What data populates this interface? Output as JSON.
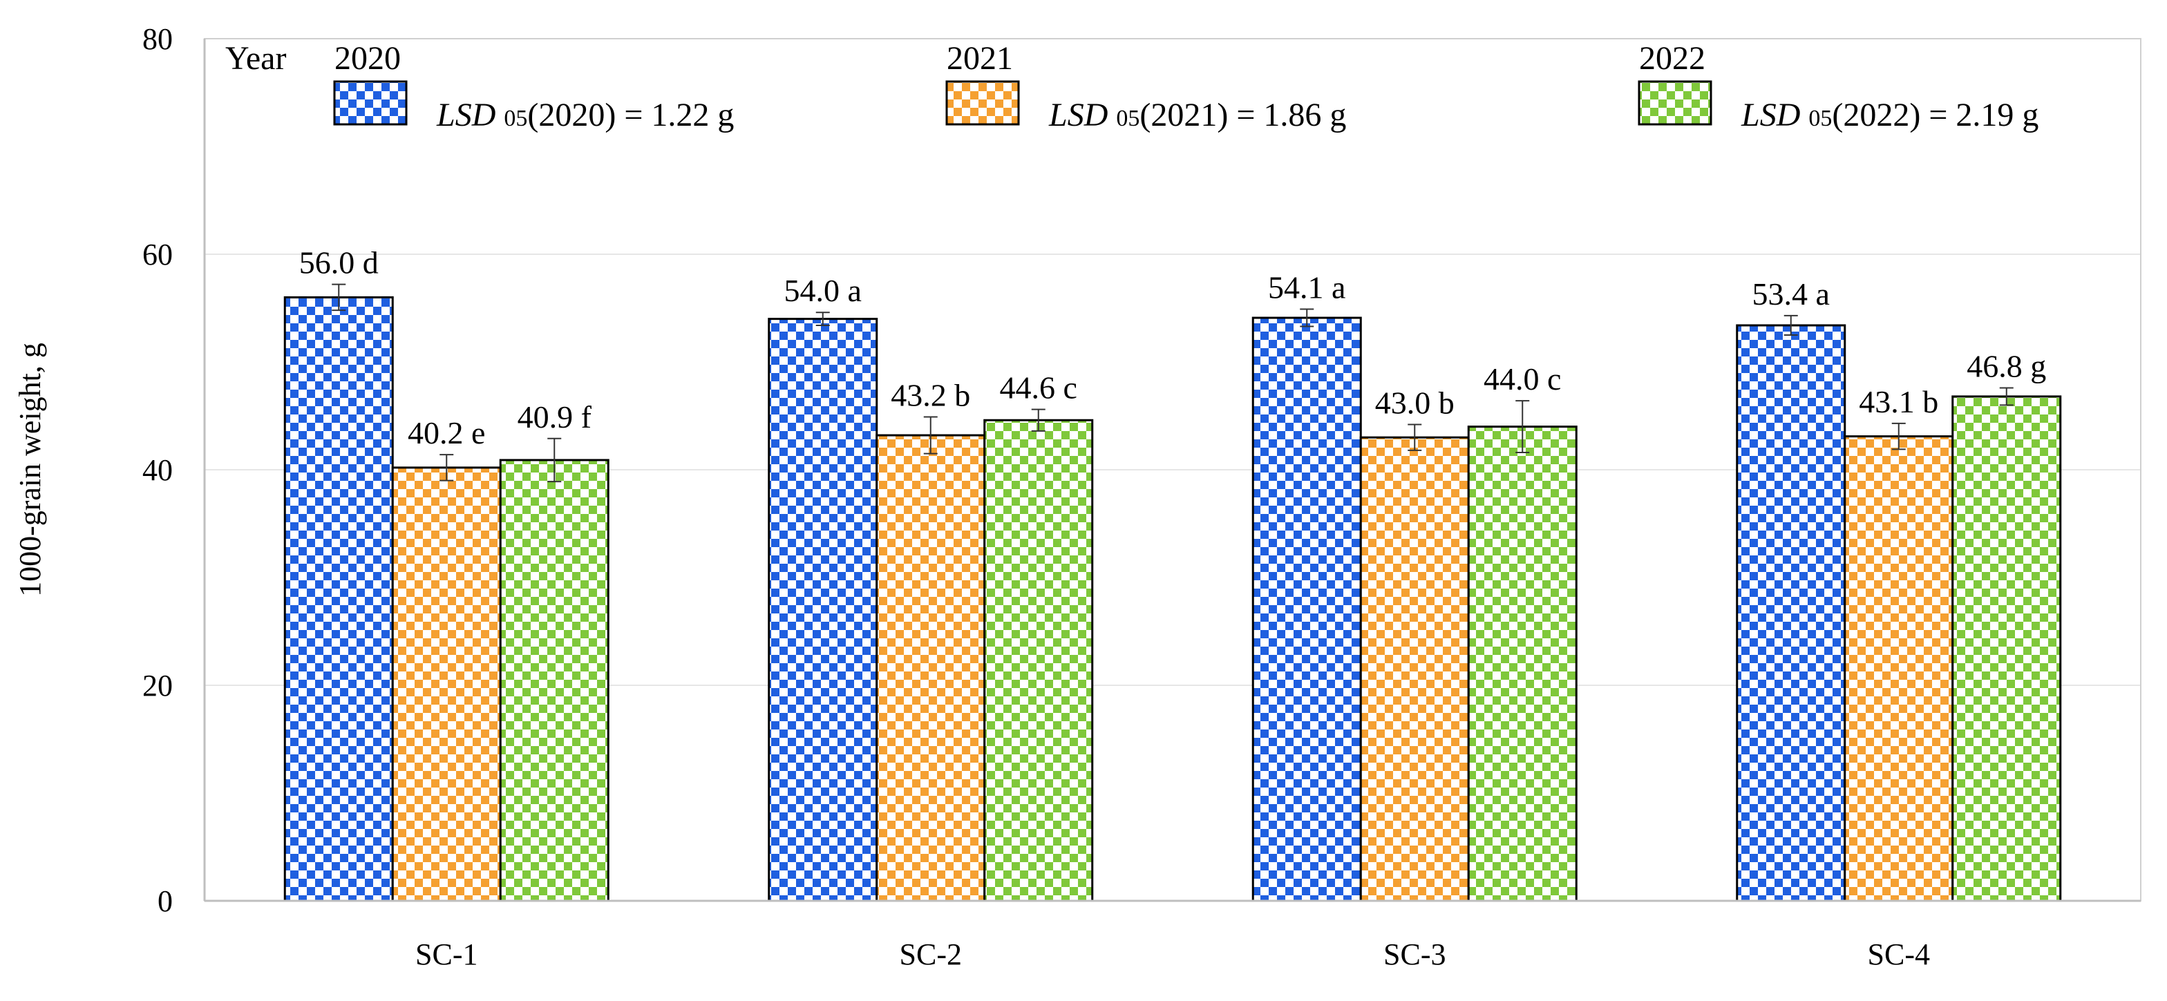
{
  "chart_data": {
    "type": "bar",
    "title": "",
    "xlabel": "",
    "ylabel": "1000-grain weight, g",
    "ylim": [
      0,
      80
    ],
    "yticks": [
      0,
      20,
      40,
      60,
      80
    ],
    "grid": true,
    "categories": [
      "SC-1",
      "SC-2",
      "SC-3",
      "SC-4"
    ],
    "series": [
      {
        "name": "2020",
        "color": "#1f5fe0",
        "values": [
          56.0,
          54.0,
          54.1,
          53.4
        ],
        "letters": [
          "d",
          "a",
          "a",
          "a"
        ],
        "errors": [
          1.2,
          0.6,
          0.8,
          0.9
        ],
        "lsd": {
          "var": "LSD",
          "sub": "05",
          "rest": "(2020) = 1.22 g"
        }
      },
      {
        "name": "2021",
        "color": "#f5a031",
        "values": [
          40.2,
          43.2,
          43.0,
          43.1
        ],
        "letters": [
          "e",
          "b",
          "b",
          "b"
        ],
        "errors": [
          1.2,
          1.7,
          1.2,
          1.2
        ],
        "lsd": {
          "var": "LSD",
          "sub": "05",
          "rest": "(2021) = 1.86 g"
        }
      },
      {
        "name": "2022",
        "color": "#7fc83a",
        "values": [
          40.9,
          44.6,
          44.0,
          46.8
        ],
        "letters": [
          "f",
          "c",
          "c",
          "g"
        ],
        "errors": [
          2.0,
          1.0,
          2.4,
          0.8
        ],
        "lsd": {
          "var": "LSD",
          "sub": "05",
          "rest": "(2022) = 2.19 g"
        }
      }
    ],
    "legend": {
      "title": "Year",
      "position": "top"
    }
  }
}
